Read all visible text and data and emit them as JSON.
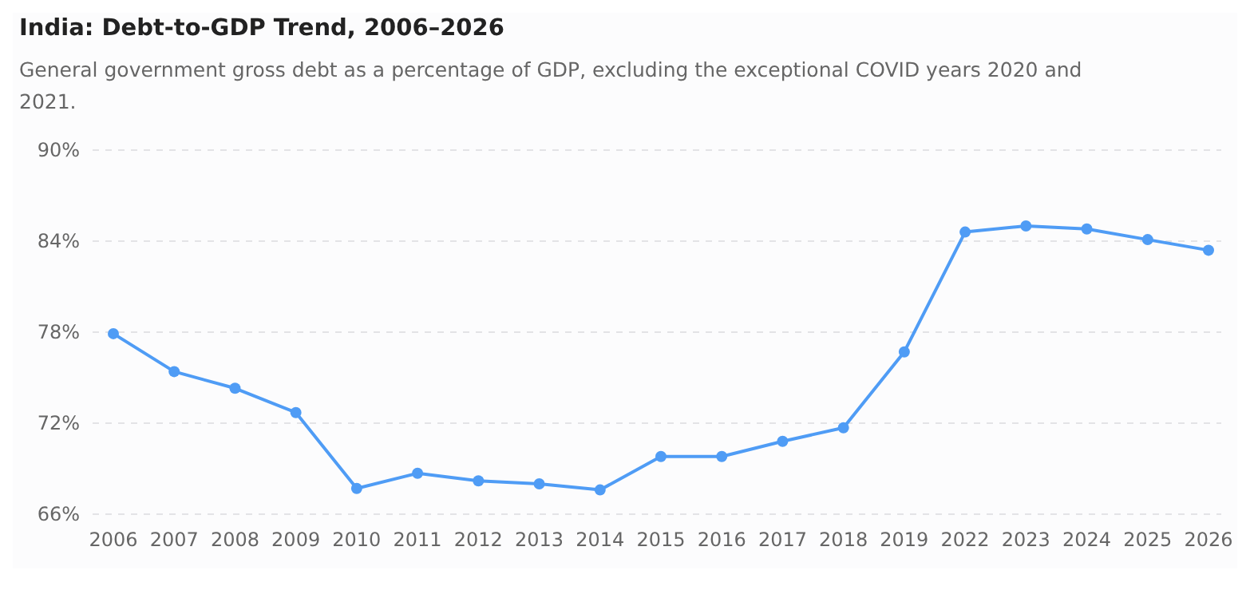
{
  "chart_data": {
    "type": "line",
    "title": "India: Debt-to-GDP Trend, 2006–2026",
    "subtitle": "General government gross debt as a percentage of GDP, excluding the exceptional COVID years 2020 and 2021.",
    "categories": [
      "2006",
      "2007",
      "2008",
      "2009",
      "2010",
      "2011",
      "2012",
      "2013",
      "2014",
      "2015",
      "2016",
      "2017",
      "2018",
      "2019",
      "2022",
      "2023",
      "2024",
      "2025",
      "2026"
    ],
    "series": [
      {
        "color": "#4f9cf5",
        "values": [
          77.9,
          75.4,
          74.3,
          72.7,
          67.7,
          68.7,
          68.2,
          68.0,
          67.6,
          69.8,
          69.8,
          70.8,
          71.7,
          76.7,
          84.6,
          85.0,
          84.8,
          84.1,
          83.4
        ]
      }
    ],
    "ylim": [
      66,
      90
    ],
    "yticks": [
      {
        "value": 66,
        "label": "66%"
      },
      {
        "value": 72,
        "label": "72%"
      },
      {
        "value": 78,
        "label": "78%"
      },
      {
        "value": 84,
        "label": "84%"
      },
      {
        "value": 90,
        "label": "90%"
      }
    ],
    "grid": "y",
    "marker": "circle",
    "line_style": "solid"
  }
}
